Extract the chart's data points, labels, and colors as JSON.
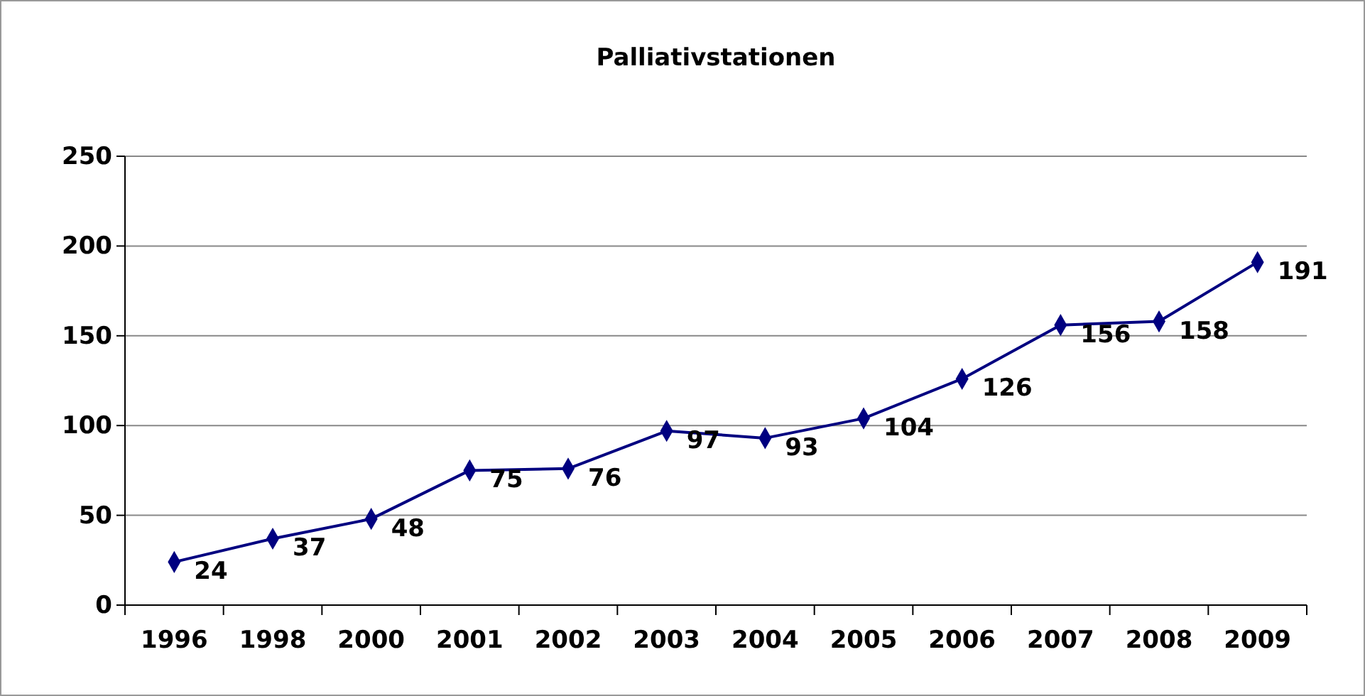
{
  "chart_data": {
    "type": "line",
    "title": "Palliativstationen",
    "categories": [
      "1996",
      "1998",
      "2000",
      "2001",
      "2002",
      "2003",
      "2004",
      "2005",
      "2006",
      "2007",
      "2008",
      "2009"
    ],
    "series": [
      {
        "color": "#000080",
        "values": [
          24,
          37,
          48,
          75,
          76,
          97,
          93,
          104,
          126,
          156,
          158,
          191
        ]
      }
    ],
    "ylim": [
      0,
      250
    ],
    "yticks": [
      0,
      50,
      100,
      150,
      200,
      250
    ],
    "grid": "y",
    "marker": "diamond",
    "line_style": "solid",
    "data_labels": true
  }
}
